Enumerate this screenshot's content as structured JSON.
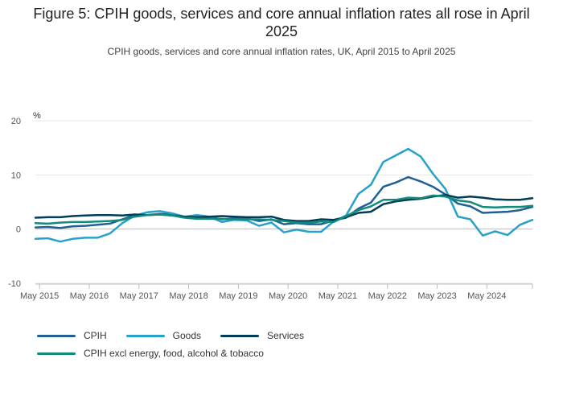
{
  "header": {
    "title": "Figure 5: CPIH goods, services and core annual inflation rates all rose in April 2025",
    "subtitle": "CPIH goods, services and core annual inflation rates, UK, April 2015 to April 2025"
  },
  "chart_data": {
    "type": "line",
    "title": "Figure 5: CPIH goods, services and core annual inflation rates all rose in April 2025",
    "subtitle": "CPIH goods, services and core annual inflation rates, UK, April 2015 to April 2025",
    "ylabel": "%",
    "xlabel": "",
    "ylim": [
      -10,
      20
    ],
    "yticks": [
      "20",
      "10",
      "0",
      "-10"
    ],
    "xticks": [
      "May 2015",
      "May 2016",
      "May 2017",
      "May 2018",
      "May 2019",
      "May 2020",
      "May 2021",
      "May 2022",
      "May 2023",
      "May 2024"
    ],
    "grid": true,
    "legend_position": "bottom",
    "x_start": "2015-04",
    "x_end": "2025-04",
    "series": [
      {
        "name": "CPIH",
        "color": "#206095",
        "points": [
          [
            "2015-04",
            0.3
          ],
          [
            "2015-07",
            0.4
          ],
          [
            "2015-10",
            0.2
          ],
          [
            "2016-01",
            0.5
          ],
          [
            "2016-04",
            0.6
          ],
          [
            "2016-07",
            0.8
          ],
          [
            "2016-10",
            1.0
          ],
          [
            "2017-01",
            1.8
          ],
          [
            "2017-04",
            2.6
          ],
          [
            "2017-07",
            2.6
          ],
          [
            "2017-10",
            2.8
          ],
          [
            "2018-01",
            2.7
          ],
          [
            "2018-04",
            2.2
          ],
          [
            "2018-07",
            2.3
          ],
          [
            "2018-10",
            2.2
          ],
          [
            "2019-01",
            1.8
          ],
          [
            "2019-04",
            2.0
          ],
          [
            "2019-07",
            2.0
          ],
          [
            "2019-10",
            1.5
          ],
          [
            "2020-01",
            1.8
          ],
          [
            "2020-04",
            0.9
          ],
          [
            "2020-07",
            1.1
          ],
          [
            "2020-10",
            0.9
          ],
          [
            "2021-01",
            0.9
          ],
          [
            "2021-04",
            1.6
          ],
          [
            "2021-07",
            2.1
          ],
          [
            "2021-10",
            3.8
          ],
          [
            "2022-01",
            4.9
          ],
          [
            "2022-04",
            7.8
          ],
          [
            "2022-07",
            8.6
          ],
          [
            "2022-10",
            9.6
          ],
          [
            "2023-01",
            8.8
          ],
          [
            "2023-04",
            7.8
          ],
          [
            "2023-07",
            6.4
          ],
          [
            "2023-10",
            4.7
          ],
          [
            "2024-01",
            4.2
          ],
          [
            "2024-04",
            3.0
          ],
          [
            "2024-07",
            3.1
          ],
          [
            "2024-10",
            3.2
          ],
          [
            "2025-01",
            3.5
          ],
          [
            "2025-04",
            4.1
          ]
        ]
      },
      {
        "name": "Goods",
        "color": "#27a0cc",
        "points": [
          [
            "2015-04",
            -1.8
          ],
          [
            "2015-07",
            -1.7
          ],
          [
            "2015-10",
            -2.3
          ],
          [
            "2016-01",
            -1.8
          ],
          [
            "2016-04",
            -1.6
          ],
          [
            "2016-07",
            -1.6
          ],
          [
            "2016-10",
            -0.8
          ],
          [
            "2017-01",
            1.1
          ],
          [
            "2017-04",
            2.5
          ],
          [
            "2017-07",
            3.1
          ],
          [
            "2017-10",
            3.3
          ],
          [
            "2018-01",
            2.9
          ],
          [
            "2018-04",
            2.3
          ],
          [
            "2018-07",
            2.6
          ],
          [
            "2018-10",
            2.3
          ],
          [
            "2019-01",
            1.3
          ],
          [
            "2019-04",
            1.7
          ],
          [
            "2019-07",
            1.6
          ],
          [
            "2019-10",
            0.6
          ],
          [
            "2020-01",
            1.2
          ],
          [
            "2020-04",
            -0.6
          ],
          [
            "2020-07",
            -0.1
          ],
          [
            "2020-10",
            -0.5
          ],
          [
            "2021-01",
            -0.5
          ],
          [
            "2021-04",
            1.4
          ],
          [
            "2021-07",
            2.5
          ],
          [
            "2021-10",
            6.5
          ],
          [
            "2022-01",
            8.2
          ],
          [
            "2022-04",
            12.4
          ],
          [
            "2022-07",
            13.6
          ],
          [
            "2022-10",
            14.8
          ],
          [
            "2023-01",
            13.4
          ],
          [
            "2023-04",
            10.2
          ],
          [
            "2023-07",
            7.4
          ],
          [
            "2023-10",
            2.3
          ],
          [
            "2024-01",
            1.8
          ],
          [
            "2024-04",
            -1.2
          ],
          [
            "2024-07",
            -0.4
          ],
          [
            "2024-10",
            -1.1
          ],
          [
            "2025-01",
            0.8
          ],
          [
            "2025-04",
            1.7
          ]
        ]
      },
      {
        "name": "Services",
        "color": "#003c57",
        "points": [
          [
            "2015-04",
            2.1
          ],
          [
            "2015-07",
            2.2
          ],
          [
            "2015-10",
            2.2
          ],
          [
            "2016-01",
            2.4
          ],
          [
            "2016-04",
            2.5
          ],
          [
            "2016-07",
            2.6
          ],
          [
            "2016-10",
            2.6
          ],
          [
            "2017-01",
            2.5
          ],
          [
            "2017-04",
            2.7
          ],
          [
            "2017-07",
            2.6
          ],
          [
            "2017-10",
            2.7
          ],
          [
            "2018-01",
            2.5
          ],
          [
            "2018-04",
            2.3
          ],
          [
            "2018-07",
            2.2
          ],
          [
            "2018-10",
            2.3
          ],
          [
            "2019-01",
            2.4
          ],
          [
            "2019-04",
            2.3
          ],
          [
            "2019-07",
            2.2
          ],
          [
            "2019-10",
            2.2
          ],
          [
            "2020-01",
            2.3
          ],
          [
            "2020-04",
            1.7
          ],
          [
            "2020-07",
            1.5
          ],
          [
            "2020-10",
            1.5
          ],
          [
            "2021-01",
            1.8
          ],
          [
            "2021-04",
            1.7
          ],
          [
            "2021-07",
            2.2
          ],
          [
            "2021-10",
            3.0
          ],
          [
            "2022-01",
            3.2
          ],
          [
            "2022-04",
            4.6
          ],
          [
            "2022-07",
            5.1
          ],
          [
            "2022-10",
            5.4
          ],
          [
            "2023-01",
            5.6
          ],
          [
            "2023-04",
            6.0
          ],
          [
            "2023-07",
            6.3
          ],
          [
            "2023-10",
            5.8
          ],
          [
            "2024-01",
            6.0
          ],
          [
            "2024-04",
            5.8
          ],
          [
            "2024-07",
            5.5
          ],
          [
            "2024-10",
            5.4
          ],
          [
            "2025-01",
            5.4
          ],
          [
            "2025-04",
            5.7
          ]
        ]
      },
      {
        "name": "CPIH excl energy, food, alcohol & tobacco",
        "color": "#118c7b",
        "points": [
          [
            "2015-04",
            1.1
          ],
          [
            "2015-07",
            1.0
          ],
          [
            "2015-10",
            1.2
          ],
          [
            "2016-01",
            1.3
          ],
          [
            "2016-04",
            1.3
          ],
          [
            "2016-07",
            1.4
          ],
          [
            "2016-10",
            1.5
          ],
          [
            "2017-01",
            1.7
          ],
          [
            "2017-04",
            2.3
          ],
          [
            "2017-07",
            2.6
          ],
          [
            "2017-10",
            2.7
          ],
          [
            "2018-01",
            2.5
          ],
          [
            "2018-04",
            2.1
          ],
          [
            "2018-07",
            1.9
          ],
          [
            "2018-10",
            1.9
          ],
          [
            "2019-01",
            1.9
          ],
          [
            "2019-04",
            1.8
          ],
          [
            "2019-07",
            1.8
          ],
          [
            "2019-10",
            1.8
          ],
          [
            "2020-01",
            1.7
          ],
          [
            "2020-04",
            1.5
          ],
          [
            "2020-07",
            1.2
          ],
          [
            "2020-10",
            1.2
          ],
          [
            "2021-01",
            1.4
          ],
          [
            "2021-04",
            1.3
          ],
          [
            "2021-07",
            2.4
          ],
          [
            "2021-10",
            3.5
          ],
          [
            "2022-01",
            4.2
          ],
          [
            "2022-04",
            5.4
          ],
          [
            "2022-07",
            5.4
          ],
          [
            "2022-10",
            5.8
          ],
          [
            "2023-01",
            5.7
          ],
          [
            "2023-04",
            6.2
          ],
          [
            "2023-07",
            6.0
          ],
          [
            "2023-10",
            5.3
          ],
          [
            "2024-01",
            5.0
          ],
          [
            "2024-04",
            4.1
          ],
          [
            "2024-07",
            4.0
          ],
          [
            "2024-10",
            4.1
          ],
          [
            "2025-01",
            4.1
          ],
          [
            "2025-04",
            4.3
          ]
        ]
      }
    ]
  }
}
